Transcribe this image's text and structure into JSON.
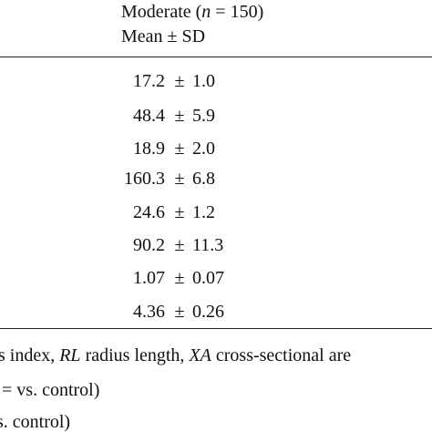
{
  "header": {
    "group": [
      "Moderate (",
      "n",
      " = 150)"
    ],
    "stat": "Mean ± SD"
  },
  "table": {
    "rows": [
      [
        "17.2",
        "±",
        "1.0"
      ],
      [
        "48.4",
        "±",
        "5.9"
      ],
      [
        "18.9",
        "±",
        "2.0"
      ],
      [
        "160.3",
        "±",
        "6.8"
      ],
      [
        "24.6",
        "±",
        "1.2"
      ],
      [
        "90.2",
        "±",
        "11.3"
      ],
      [
        "1.07",
        "±",
        "0.07"
      ],
      [
        "4.36",
        "±",
        "0.26"
      ]
    ]
  },
  "footnotes": [
    [
      "s index, ",
      "RL",
      " radius length, ",
      "XA",
      " cross-sectional are"
    ],
    [
      "= vs. control)"
    ],
    [
      "s. control)"
    ]
  ]
}
